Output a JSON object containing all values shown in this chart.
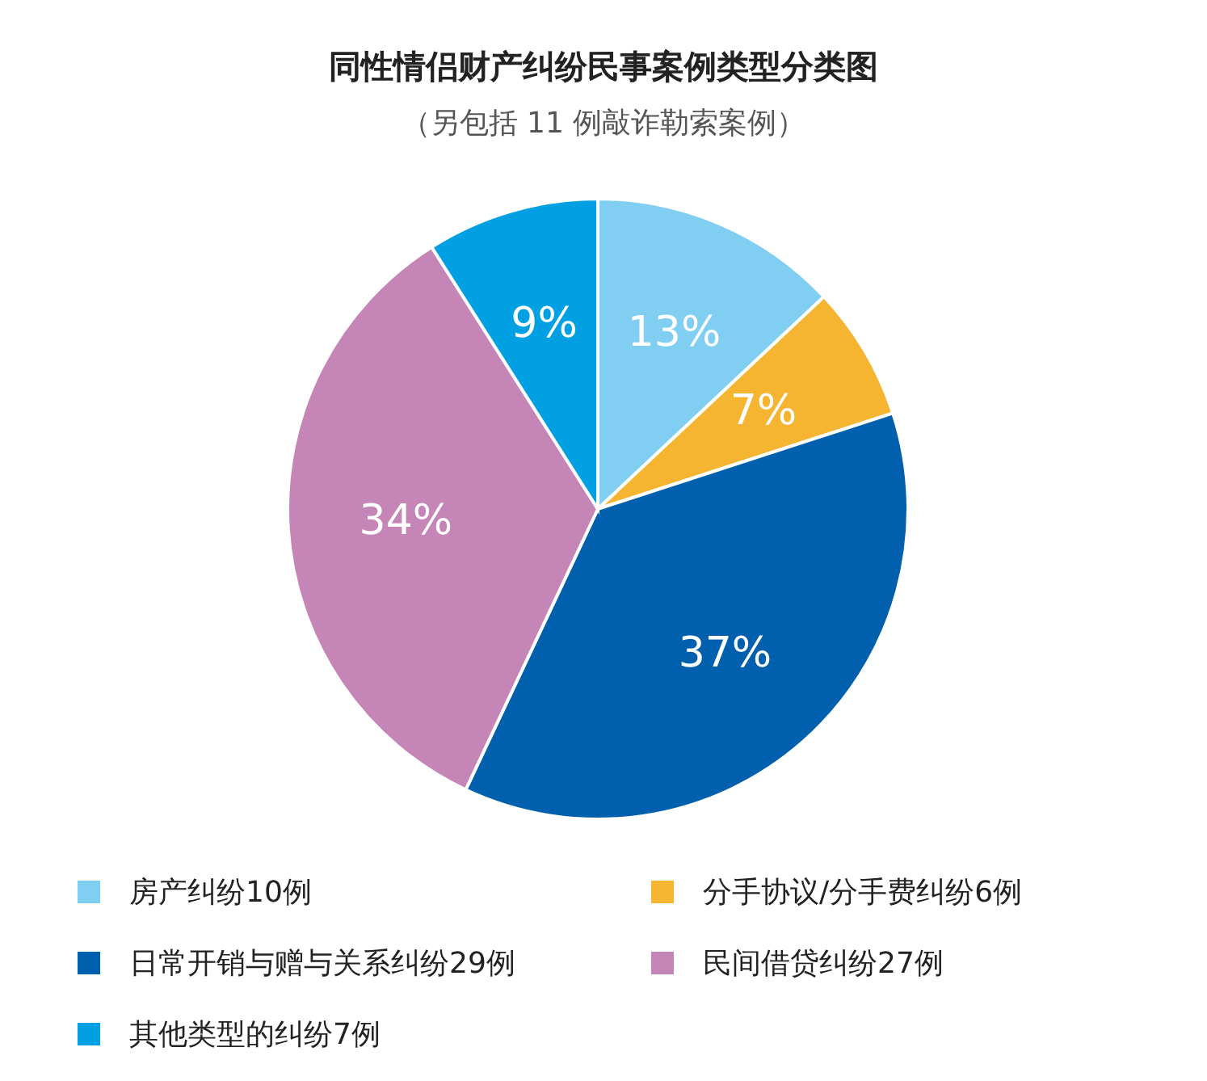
{
  "chart_data": {
    "type": "pie",
    "title": "同性情侣财产纠纷民事案例类型分类图",
    "subtitle": "（另包括 11 例敲诈勒索案例）",
    "categories": [
      "房产纠纷10例",
      "分手协议/分手费纠纷6例",
      "日常开销与赠与关系纠纷29例",
      "民间借贷纠纷27例",
      "其他类型的纠纷7例"
    ],
    "values": [
      13,
      7,
      37,
      34,
      9
    ],
    "colors": [
      "#80cef2",
      "#f6b530",
      "#0060ad",
      "#c585b7",
      "#00a0e2"
    ],
    "value_labels": [
      "13%",
      "7%",
      "37%",
      "34%",
      "9%"
    ],
    "legend": "bottom"
  }
}
